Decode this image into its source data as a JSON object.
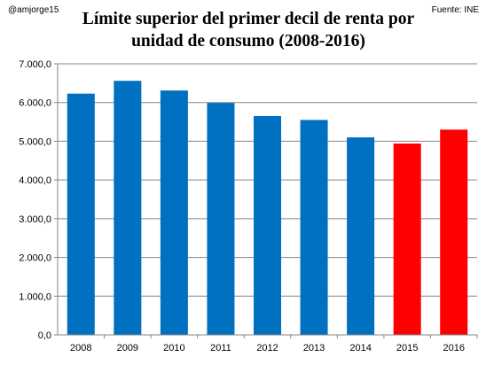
{
  "author": "@amjorge15",
  "source": "Fuente: INE",
  "colors": {
    "bar_default": "#0070c0",
    "bar_highlight": "#ff0000",
    "gridline": "#868686",
    "axis": "#868686",
    "background": "#ffffff"
  },
  "chart_data": {
    "type": "bar",
    "title": "Límite superior del primer decil de renta por",
    "title_line2": "unidad de consumo (2008-2016)",
    "categories": [
      "2008",
      "2009",
      "2010",
      "2011",
      "2012",
      "2013",
      "2014",
      "2015",
      "2016"
    ],
    "values": [
      6230,
      6560,
      6310,
      5990,
      5650,
      5550,
      5100,
      4940,
      5300
    ],
    "highlighted_categories": [
      "2015",
      "2016"
    ],
    "y_tick_labels": [
      "0,0",
      "1.000,0",
      "2.000,0",
      "3.000,0",
      "4.000,0",
      "5.000,0",
      "6.000,0",
      "7.000,0"
    ],
    "ylim": [
      0,
      7000
    ],
    "grid": true,
    "xlabel": "",
    "ylabel": ""
  }
}
